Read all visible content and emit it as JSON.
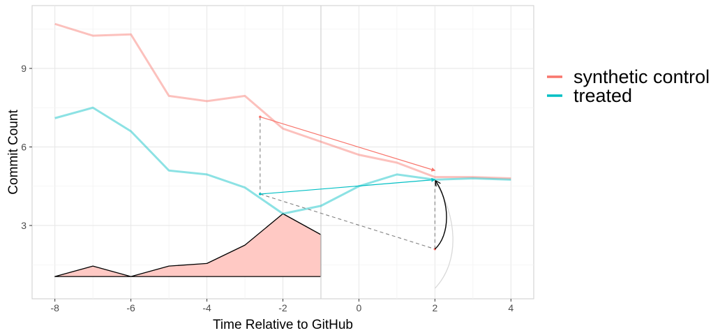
{
  "chart_data": {
    "type": "line",
    "title": "",
    "xlabel": "Time Relative to GitHub",
    "ylabel": "Commit Count",
    "xlim": [
      -8.6,
      4.6
    ],
    "ylim": [
      0.2,
      11.4
    ],
    "x_ticks": [
      -8,
      -6,
      -4,
      -2,
      0,
      2,
      4
    ],
    "y_ticks": [
      3,
      6,
      9
    ],
    "grid": true,
    "legend_position": "right",
    "series": [
      {
        "name": "synthetic control",
        "color": "#F8766D",
        "x": [
          -8,
          -7,
          -6,
          -5,
          -4,
          -3,
          -2,
          -1,
          0,
          1,
          2,
          3,
          4
        ],
        "y": [
          10.7,
          10.25,
          10.3,
          7.95,
          7.75,
          7.95,
          6.7,
          6.2,
          5.7,
          5.4,
          4.85,
          4.85,
          4.8
        ]
      },
      {
        "name": "treated",
        "color": "#00BFC4",
        "x": [
          -8,
          -7,
          -6,
          -5,
          -4,
          -3,
          -2,
          -1,
          0,
          1,
          2,
          3,
          4
        ],
        "y": [
          7.1,
          7.5,
          6.6,
          5.1,
          4.95,
          4.45,
          3.45,
          3.75,
          4.5,
          4.95,
          4.75,
          4.8,
          4.75
        ]
      }
    ],
    "area": {
      "x": [
        -8,
        -7,
        -6,
        -5,
        -4,
        -3,
        -2,
        -1
      ],
      "y": [
        1.05,
        1.45,
        1.05,
        1.45,
        1.55,
        2.25,
        3.45,
        2.65
      ],
      "baseline": 1.05,
      "fill": "#FFC9C4",
      "stroke": "#000000"
    },
    "annotations": {
      "vline_x": -1,
      "upper_arrow": {
        "from": [
          -2.6,
          7.15
        ],
        "to": [
          2,
          5.1
        ],
        "color": "#F8766D"
      },
      "lower_arrow": {
        "from": [
          -2.6,
          4.2
        ],
        "to": [
          2,
          4.75
        ],
        "color": "#00BFC4"
      },
      "dashed_vertical": {
        "x": -2.6,
        "y1": 7.15,
        "y2": 4.2
      },
      "dashed_diagonal": {
        "from": [
          -2.6,
          4.2
        ],
        "to": [
          2,
          2.1
        ]
      },
      "dashed_vertical_right": {
        "x": 2,
        "y1": 2.1,
        "y2": 4.75
      },
      "curved_arrow": {
        "from": [
          2,
          2.1
        ],
        "to": [
          2,
          4.75
        ],
        "color": "#000000"
      },
      "faint_curve": {
        "from": [
          2,
          0.6
        ],
        "to": [
          2,
          4.75
        ],
        "color": "#d9d9d9"
      }
    }
  }
}
